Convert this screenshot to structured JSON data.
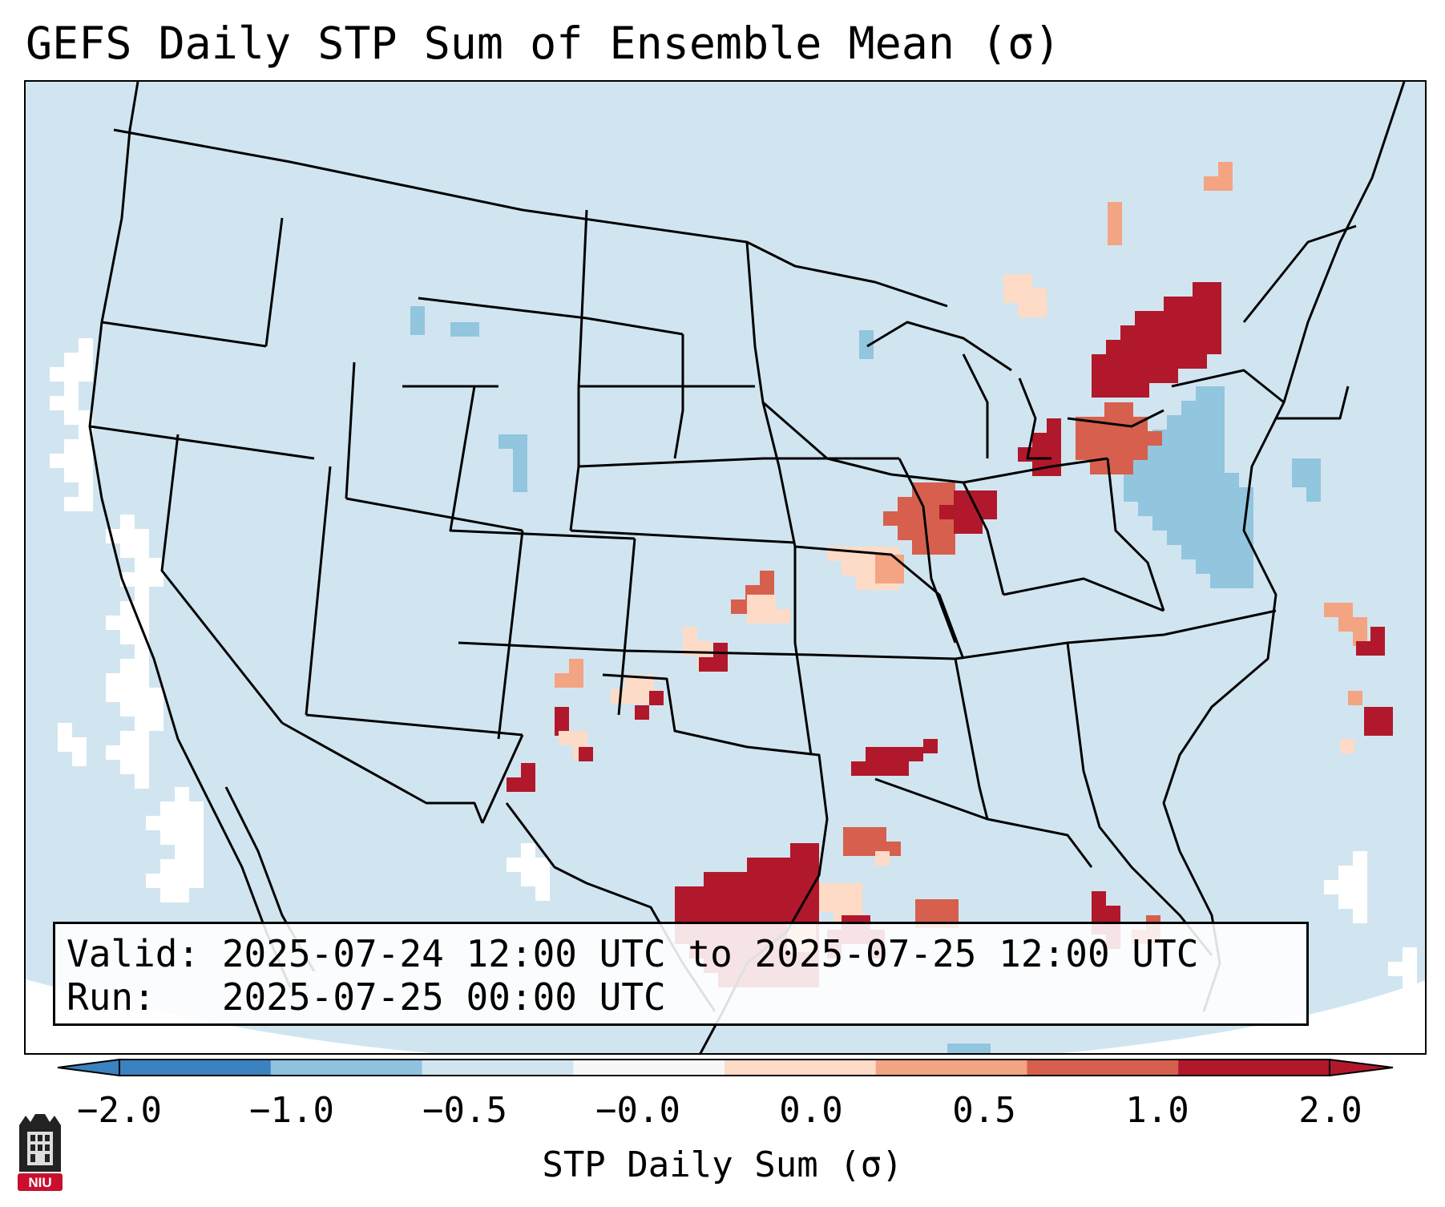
{
  "title": "GEFS Daily STP Sum of Ensemble Mean (σ)",
  "info": {
    "valid_line": "Valid: 2025-07-24 12:00 UTC to 2025-07-25 12:00 UTC",
    "run_line": "Run:   2025-07-25 00:00 UTC"
  },
  "colorbar": {
    "label": "STP Daily Sum (σ)",
    "ticks": [
      "−2.0",
      "−1.0",
      "−0.5",
      "−0.0",
      "0.0",
      "0.5",
      "1.0",
      "2.0"
    ],
    "colors": [
      "#3a82c0",
      "#8fc2de",
      "#d1e5f0",
      "#f7f7f7",
      "#fddbc7",
      "#f3a482",
      "#d6604d",
      "#b2182b"
    ],
    "extend": "both"
  },
  "logo": {
    "text": "NIU"
  },
  "map": {
    "background_color": "#d1e5f0",
    "outside_color": "#ffffff",
    "highlight_regions": [
      {
        "name": "Texas Gulf coast",
        "level": 2.0
      },
      {
        "name": "Southern Ontario / Quebec",
        "level": 2.0
      },
      {
        "name": "Western Atlantic",
        "level": 2.0
      },
      {
        "name": "Northern Illinois / Indiana",
        "level": 1.0
      },
      {
        "name": "Northeast US",
        "level": -1.0
      }
    ]
  }
}
